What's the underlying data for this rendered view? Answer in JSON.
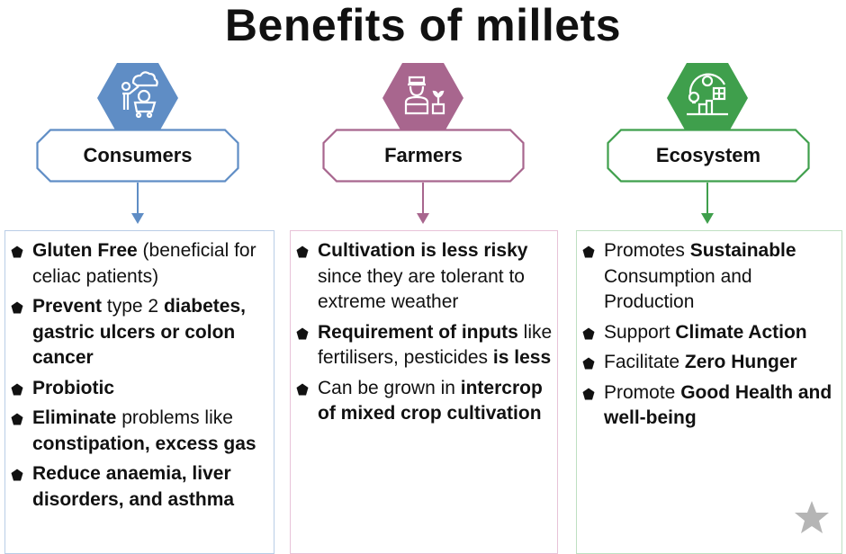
{
  "title": "Benefits of millets",
  "colors": {
    "consumers": "#5f8dc5",
    "farmers": "#a8668e",
    "ecosystem": "#3f9f4c",
    "star": "#b5b5b5"
  },
  "columns": [
    {
      "key": "consumers",
      "label": "Consumers",
      "icon": "shopper-cart-money-icon",
      "items": [
        [
          {
            "t": "Gluten Free",
            "b": true
          },
          {
            "t": " (beneficial for celiac patients)",
            "b": false
          }
        ],
        [
          {
            "t": "Prevent",
            "b": true
          },
          {
            "t": " type 2 ",
            "b": false
          },
          {
            "t": "diabetes, gastric ulcers or colon cancer",
            "b": true
          }
        ],
        [
          {
            "t": "Probiotic",
            "b": true
          }
        ],
        [
          {
            "t": "Eliminate",
            "b": true
          },
          {
            "t": " problems like ",
            "b": false
          },
          {
            "t": "constipation, excess gas",
            "b": true
          }
        ],
        [
          {
            "t": "Reduce anaemia, liver disorders, and asthma",
            "b": true
          }
        ]
      ]
    },
    {
      "key": "farmers",
      "label": "Farmers",
      "icon": "farmer-plant-icon",
      "items": [
        [
          {
            "t": "Cultivation is less risky",
            "b": true
          },
          {
            "t": " since they are tolerant to extreme weather",
            "b": false
          }
        ],
        [
          {
            "t": "Requirement of inputs",
            "b": true
          },
          {
            "t": " like fertilisers, pesticides ",
            "b": false
          },
          {
            "t": "is less",
            "b": true
          }
        ],
        [
          {
            "t": "Can be grown in ",
            "b": false
          },
          {
            "t": "intercrop of mixed crop cultivation",
            "b": true
          }
        ]
      ]
    },
    {
      "key": "ecosystem",
      "label": "Ecosystem",
      "icon": "eco-city-solar-icon",
      "items": [
        [
          {
            "t": "Promotes ",
            "b": false
          },
          {
            "t": "Sustainable",
            "b": true
          },
          {
            "t": " Consumption and Production",
            "b": false
          }
        ],
        [
          {
            "t": "Support ",
            "b": false
          },
          {
            "t": "Climate Action",
            "b": true
          }
        ],
        [
          {
            "t": "Facilitate ",
            "b": false
          },
          {
            "t": "Zero Hunger",
            "b": true
          }
        ],
        [
          {
            "t": "Promote ",
            "b": false
          },
          {
            "t": "Good Health and well-being",
            "b": true
          }
        ]
      ]
    }
  ]
}
